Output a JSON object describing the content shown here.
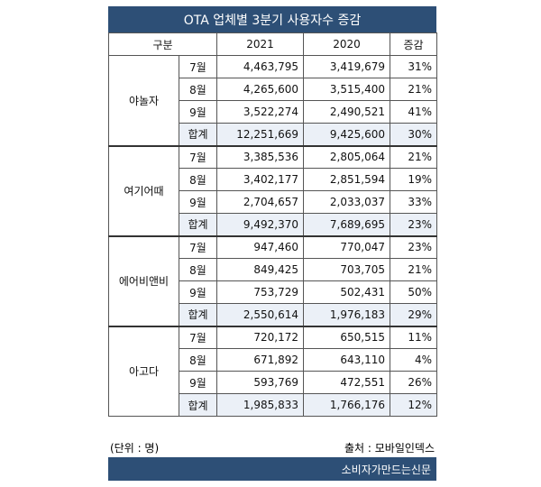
{
  "title": "OTA 업체별 3분기 사용자수 증감",
  "header": {
    "category": "구분",
    "y2021": "2021",
    "y2020": "2020",
    "change": "증감"
  },
  "groups": [
    {
      "name": "야놀자",
      "rows": [
        {
          "month": "7월",
          "v2021": "4,463,795",
          "v2020": "3,419,679",
          "change": "31%"
        },
        {
          "month": "8월",
          "v2021": "4,265,600",
          "v2020": "3,515,400",
          "change": "21%"
        },
        {
          "month": "9월",
          "v2021": "3,522,274",
          "v2020": "2,490,521",
          "change": "41%"
        },
        {
          "month": "합계",
          "v2021": "12,251,669",
          "v2020": "9,425,600",
          "change": "30%"
        }
      ]
    },
    {
      "name": "여기어때",
      "rows": [
        {
          "month": "7월",
          "v2021": "3,385,536",
          "v2020": "2,805,064",
          "change": "21%"
        },
        {
          "month": "8월",
          "v2021": "3,402,177",
          "v2020": "2,851,594",
          "change": "19%"
        },
        {
          "month": "9월",
          "v2021": "2,704,657",
          "v2020": "2,033,037",
          "change": "33%"
        },
        {
          "month": "합계",
          "v2021": "9,492,370",
          "v2020": "7,689,695",
          "change": "23%"
        }
      ]
    },
    {
      "name": "에어비앤비",
      "rows": [
        {
          "month": "7월",
          "v2021": "947,460",
          "v2020": "770,047",
          "change": "23%"
        },
        {
          "month": "8월",
          "v2021": "849,425",
          "v2020": "703,705",
          "change": "21%"
        },
        {
          "month": "9월",
          "v2021": "753,729",
          "v2020": "502,431",
          "change": "50%"
        },
        {
          "month": "합계",
          "v2021": "2,550,614",
          "v2020": "1,976,183",
          "change": "29%"
        }
      ]
    },
    {
      "name": "아고다",
      "rows": [
        {
          "month": "7월",
          "v2021": "720,172",
          "v2020": "650,515",
          "change": "11%"
        },
        {
          "month": "8월",
          "v2021": "671,892",
          "v2020": "643,110",
          "change": "4%"
        },
        {
          "month": "9월",
          "v2021": "593,769",
          "v2020": "472,551",
          "change": "26%"
        },
        {
          "month": "합계",
          "v2021": "1,985,833",
          "v2020": "1,766,176",
          "change": "12%"
        }
      ]
    }
  ],
  "footer": {
    "unit": "(단위 : 명)",
    "source": "출처 : 모바일인덱스",
    "publisher": "소비자가만드는신문"
  },
  "colors": {
    "banner": "#2d4f76",
    "sum_row": "#ebf0f7"
  }
}
